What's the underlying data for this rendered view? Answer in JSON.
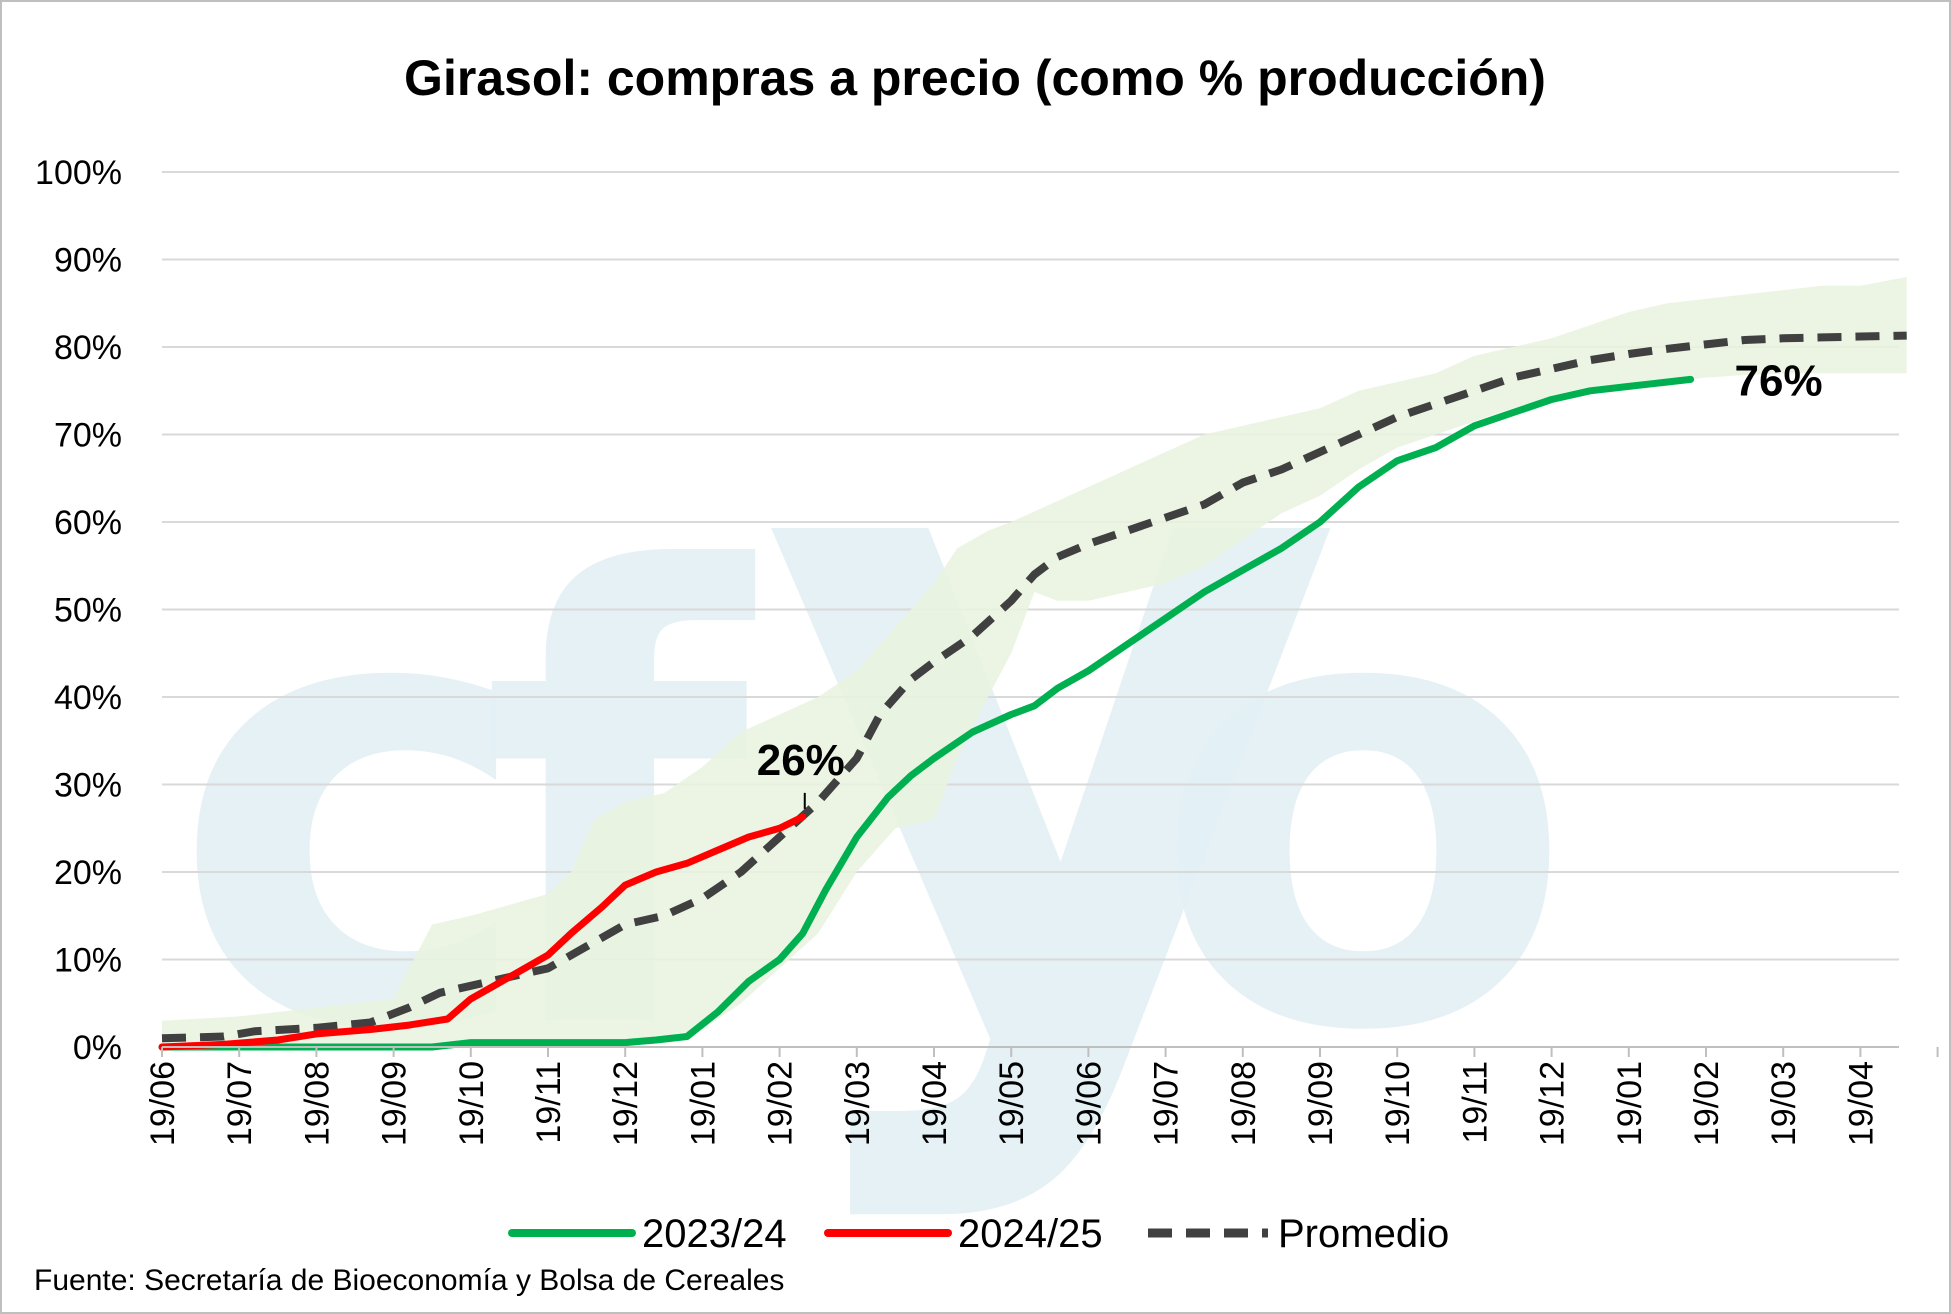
{
  "chart_data": {
    "type": "line",
    "title": "Girasol: compras a precio (como % producción)",
    "x_ticks": [
      "19/06",
      "19/07",
      "19/08",
      "19/09",
      "19/10",
      "19/11",
      "19/12",
      "19/01",
      "19/02",
      "19/03",
      "19/04",
      "19/05",
      "19/06",
      "19/07",
      "19/08",
      "19/09",
      "19/10",
      "19/11",
      "19/12",
      "19/01",
      "19/02",
      "19/03",
      "19/04"
    ],
    "x_range": [
      0,
      22.6
    ],
    "y_ticks": [
      "0%",
      "10%",
      "20%",
      "30%",
      "40%",
      "50%",
      "60%",
      "70%",
      "80%",
      "90%",
      "100%"
    ],
    "ylim": [
      0,
      100
    ],
    "grid": true,
    "legend_position": "bottom",
    "legend": [
      "2023/24",
      "2024/25",
      "Promedio"
    ],
    "series": [
      {
        "name": "2023/24",
        "color": "#00b050",
        "style": "solid",
        "points": [
          [
            0,
            0
          ],
          [
            1,
            0
          ],
          [
            2,
            0
          ],
          [
            3,
            0
          ],
          [
            3.5,
            0
          ],
          [
            4,
            0.5
          ],
          [
            5,
            0.5
          ],
          [
            6,
            0.5
          ],
          [
            6.4,
            0.8
          ],
          [
            6.8,
            1.2
          ],
          [
            7.2,
            4
          ],
          [
            7.6,
            7.5
          ],
          [
            8,
            10
          ],
          [
            8.3,
            13
          ],
          [
            8.6,
            18
          ],
          [
            9,
            24
          ],
          [
            9.4,
            28.5
          ],
          [
            9.7,
            31
          ],
          [
            10,
            33
          ],
          [
            10.5,
            36
          ],
          [
            11,
            38
          ],
          [
            11.3,
            39
          ],
          [
            11.6,
            41
          ],
          [
            12,
            43
          ],
          [
            12.5,
            46
          ],
          [
            13,
            49
          ],
          [
            13.5,
            52
          ],
          [
            14,
            54.5
          ],
          [
            14.5,
            57
          ],
          [
            15,
            60
          ],
          [
            15.5,
            64
          ],
          [
            16,
            67
          ],
          [
            16.5,
            68.5
          ],
          [
            17,
            71
          ],
          [
            17.5,
            72.5
          ],
          [
            18,
            74
          ],
          [
            18.5,
            75
          ],
          [
            19,
            75.5
          ],
          [
            19.5,
            76
          ],
          [
            19.8,
            76.3
          ]
        ]
      },
      {
        "name": "2024/25",
        "color": "#ff0000",
        "style": "solid",
        "points": [
          [
            0,
            0
          ],
          [
            0.8,
            0.3
          ],
          [
            1.5,
            0.8
          ],
          [
            2,
            1.5
          ],
          [
            2.7,
            2
          ],
          [
            3.2,
            2.5
          ],
          [
            3.7,
            3.2
          ],
          [
            4,
            5.5
          ],
          [
            4.3,
            7
          ],
          [
            4.7,
            9
          ],
          [
            5,
            10.5
          ],
          [
            5.3,
            13
          ],
          [
            5.7,
            16
          ],
          [
            6,
            18.5
          ],
          [
            6.4,
            20
          ],
          [
            6.8,
            21
          ],
          [
            7.2,
            22.5
          ],
          [
            7.6,
            24
          ],
          [
            8,
            25
          ],
          [
            8.3,
            26.3
          ]
        ]
      },
      {
        "name": "Promedio",
        "color": "#404040",
        "style": "dashed",
        "points": [
          [
            0,
            1
          ],
          [
            0.8,
            1.2
          ],
          [
            1.2,
            1.8
          ],
          [
            2,
            2.2
          ],
          [
            2.7,
            2.8
          ],
          [
            3.2,
            4.5
          ],
          [
            3.6,
            6.2
          ],
          [
            4,
            7
          ],
          [
            4.5,
            8
          ],
          [
            5,
            9
          ],
          [
            5.5,
            11.5
          ],
          [
            6,
            14
          ],
          [
            6.5,
            15
          ],
          [
            7,
            17
          ],
          [
            7.5,
            20
          ],
          [
            8,
            24
          ],
          [
            8.5,
            28
          ],
          [
            9,
            33
          ],
          [
            9.3,
            38
          ],
          [
            9.7,
            42
          ],
          [
            10,
            44
          ],
          [
            10.5,
            47
          ],
          [
            11,
            51
          ],
          [
            11.3,
            54
          ],
          [
            11.6,
            56
          ],
          [
            12,
            57.5
          ],
          [
            12.5,
            59
          ],
          [
            13,
            60.5
          ],
          [
            13.5,
            62
          ],
          [
            14,
            64.5
          ],
          [
            14.5,
            66
          ],
          [
            15,
            68
          ],
          [
            15.5,
            70
          ],
          [
            16,
            72
          ],
          [
            16.5,
            73.5
          ],
          [
            17,
            75
          ],
          [
            17.5,
            76.5
          ],
          [
            18,
            77.5
          ],
          [
            18.5,
            78.5
          ],
          [
            19,
            79.2
          ],
          [
            19.5,
            79.8
          ],
          [
            20,
            80.3
          ],
          [
            20.5,
            80.8
          ],
          [
            21,
            81
          ],
          [
            21.5,
            81.1
          ],
          [
            22,
            81.2
          ],
          [
            22.6,
            81.3
          ]
        ]
      }
    ],
    "band": {
      "color": "#e9f3de",
      "upper": [
        [
          0,
          3
        ],
        [
          1,
          3.5
        ],
        [
          2,
          4.5
        ],
        [
          3,
          5.5
        ],
        [
          3.2,
          9
        ],
        [
          3.5,
          14
        ],
        [
          4,
          15
        ],
        [
          5,
          17.5
        ],
        [
          5.3,
          20
        ],
        [
          5.6,
          26
        ],
        [
          6,
          28
        ],
        [
          6.5,
          29
        ],
        [
          7,
          32
        ],
        [
          7.5,
          36
        ],
        [
          8,
          38
        ],
        [
          8.5,
          40
        ],
        [
          9,
          43
        ],
        [
          9.5,
          48
        ],
        [
          10,
          53
        ],
        [
          10.3,
          57
        ],
        [
          10.7,
          59
        ],
        [
          11,
          60
        ],
        [
          11.5,
          62
        ],
        [
          12,
          64
        ],
        [
          12.5,
          66
        ],
        [
          13,
          68
        ],
        [
          13.5,
          70
        ],
        [
          14,
          71
        ],
        [
          14.5,
          72
        ],
        [
          15,
          73
        ],
        [
          15.5,
          75
        ],
        [
          16,
          76
        ],
        [
          16.5,
          77
        ],
        [
          17,
          79
        ],
        [
          17.5,
          80
        ],
        [
          18,
          81
        ],
        [
          18.5,
          82.5
        ],
        [
          19,
          84
        ],
        [
          19.5,
          85
        ],
        [
          20,
          85.5
        ],
        [
          20.5,
          86
        ],
        [
          21,
          86.5
        ],
        [
          21.5,
          87
        ],
        [
          22,
          87
        ],
        [
          22.6,
          88
        ]
      ],
      "lower": [
        [
          0,
          0
        ],
        [
          1,
          0
        ],
        [
          2,
          0
        ],
        [
          3,
          0
        ],
        [
          4,
          0
        ],
        [
          5,
          0
        ],
        [
          6,
          0.5
        ],
        [
          7,
          2
        ],
        [
          7.5,
          5
        ],
        [
          8,
          9
        ],
        [
          8.5,
          13
        ],
        [
          9,
          20
        ],
        [
          9.5,
          25
        ],
        [
          10,
          26
        ],
        [
          10.3,
          33
        ],
        [
          10.7,
          40
        ],
        [
          11,
          45
        ],
        [
          11.3,
          52
        ],
        [
          11.6,
          51
        ],
        [
          12,
          51
        ],
        [
          12.5,
          52
        ],
        [
          13,
          53
        ],
        [
          13.5,
          55
        ],
        [
          14,
          58
        ],
        [
          14.5,
          61
        ],
        [
          15,
          63
        ],
        [
          15.5,
          66
        ],
        [
          16,
          68.5
        ],
        [
          16.5,
          70
        ],
        [
          17,
          71.5
        ],
        [
          17.5,
          73
        ],
        [
          18,
          74
        ],
        [
          18.5,
          75
        ],
        [
          19,
          75.5
        ],
        [
          19.5,
          76
        ],
        [
          20,
          76.5
        ],
        [
          20.5,
          76.8
        ],
        [
          21,
          77
        ],
        [
          21.5,
          77
        ],
        [
          22,
          77
        ],
        [
          22.6,
          77
        ]
      ]
    },
    "annotations": [
      {
        "text": "26%",
        "x": 8.3,
        "y": 26.3
      },
      {
        "text": "76%",
        "x": 19.8,
        "y": 76.3
      }
    ]
  },
  "watermark": {
    "text": "cfyo"
  },
  "source": "Fuente: Secretaría de Bioeconomía y Bolsa de Cereales"
}
